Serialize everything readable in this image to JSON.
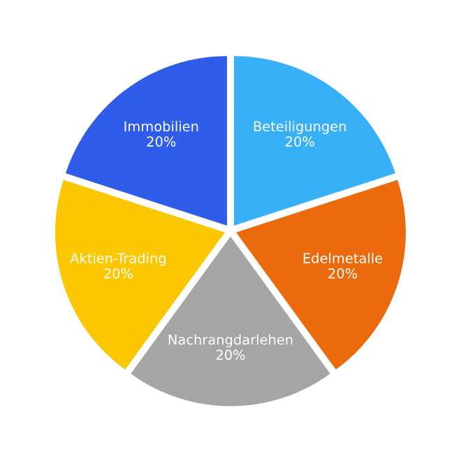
{
  "chart_data": {
    "type": "pie",
    "categories": [
      "Beteiligungen",
      "Edelmetalle",
      "Nachrangdarlehen",
      "Aktien-Trading",
      "Immobilien"
    ],
    "values": [
      20,
      20,
      20,
      20,
      20
    ],
    "value_labels": [
      "20%",
      "20%",
      "20%",
      "20%",
      "20%"
    ],
    "colors": [
      "#38b0f7",
      "#eb6b0c",
      "#a5a5a5",
      "#fbc700",
      "#2f5ce8"
    ]
  }
}
